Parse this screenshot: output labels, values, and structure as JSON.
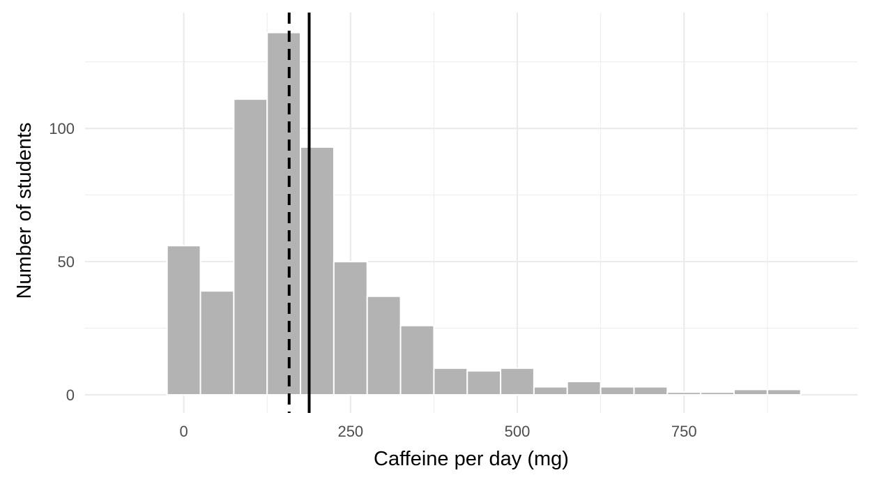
{
  "chart_data": {
    "type": "bar",
    "title": "",
    "xlabel": "Caffeine per day (mg)",
    "ylabel": "Number of students",
    "bin_width": 50,
    "bins": [
      {
        "x": 0,
        "count": 56
      },
      {
        "x": 50,
        "count": 39
      },
      {
        "x": 100,
        "count": 111
      },
      {
        "x": 150,
        "count": 136
      },
      {
        "x": 200,
        "count": 93
      },
      {
        "x": 250,
        "count": 50
      },
      {
        "x": 300,
        "count": 37
      },
      {
        "x": 350,
        "count": 26
      },
      {
        "x": 400,
        "count": 10
      },
      {
        "x": 450,
        "count": 9
      },
      {
        "x": 500,
        "count": 10
      },
      {
        "x": 550,
        "count": 3
      },
      {
        "x": 600,
        "count": 5
      },
      {
        "x": 650,
        "count": 3
      },
      {
        "x": 700,
        "count": 3
      },
      {
        "x": 750,
        "count": 1
      },
      {
        "x": 800,
        "count": 1
      },
      {
        "x": 850,
        "count": 2
      },
      {
        "x": 900,
        "count": 2
      }
    ],
    "xlim": [
      -148,
      1010
    ],
    "ylim": [
      -6.8,
      143.5
    ],
    "x_ticks": [
      0,
      250,
      500,
      750
    ],
    "x_tick_labels": [
      "0",
      "250",
      "500",
      "750"
    ],
    "x_minor_ticks": [
      125,
      375,
      625,
      875
    ],
    "y_ticks": [
      0,
      50,
      100
    ],
    "y_tick_labels": [
      "0",
      "50",
      "100"
    ],
    "y_minor_ticks": [
      25,
      75,
      125
    ],
    "reference_lines": [
      {
        "x": 158,
        "style": "dashed"
      },
      {
        "x": 188,
        "style": "solid"
      }
    ],
    "grid": true,
    "legend": "none",
    "colors": {
      "bar": "#b3b3b3",
      "bar_edge": "#ffffff",
      "grid": "#ebebeb",
      "line": "#000000"
    }
  }
}
